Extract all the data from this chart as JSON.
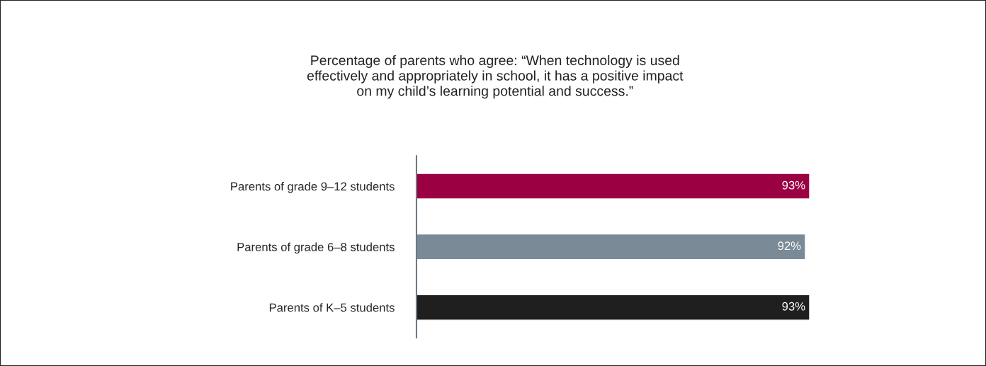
{
  "chart_data": {
    "type": "bar",
    "orientation": "horizontal",
    "title": "Percentage of parents who agree: “When technology is used\neffectively and appropriately in school, it has a positive impact\non my child’s learning potential and success.”",
    "categories": [
      "Parents of grade 9–12 students",
      "Parents of grade 6–8 students",
      "Parents of K–5 students"
    ],
    "values": [
      93,
      92,
      93
    ],
    "colors": [
      "#9b0042",
      "#7b8a97",
      "#1f1f1f"
    ],
    "value_labels": [
      "93%",
      "92%",
      "93%"
    ],
    "tick_labels": "y",
    "grid": false,
    "legend": false
  }
}
